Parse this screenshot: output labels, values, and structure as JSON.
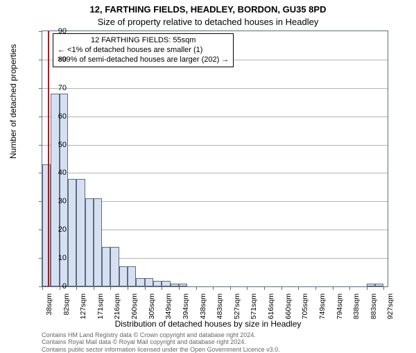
{
  "title_line1": "12, FARTHING FIELDS, HEADLEY, BORDON, GU35 8PD",
  "title_line2": "Size of property relative to detached houses in Headley",
  "ylabel": "Number of detached properties",
  "xlabel": "Distribution of detached houses by size in Headley",
  "caption_line1": "Contains HM Land Registry data © Crown copyright and database right 2024.",
  "caption_line2": "Contains Royal Mail data © Royal Mail copyright and database right 2024.",
  "caption_line3": "Contains public sector information licensed under the Open Government Licence v3.0.",
  "annotation": {
    "line1": "12 FARTHING FIELDS: 55sqm",
    "line2": "← <1% of detached houses are smaller (1)",
    "line3": ">99% of semi-detached houses are larger (202) →"
  },
  "chart": {
    "type": "histogram",
    "x_min": 38,
    "x_max": 938,
    "y_min": 0,
    "y_max": 90,
    "y_ticks": [
      0,
      10,
      20,
      30,
      40,
      50,
      60,
      70,
      80,
      90
    ],
    "x_tick_start": 38,
    "x_tick_step": 44.5,
    "x_tick_count": 21,
    "x_tick_unit": "sqm",
    "x_tick_rounding": [
      38,
      82,
      127,
      171,
      216,
      260,
      305,
      349,
      394,
      438,
      483,
      527,
      571,
      616,
      660,
      705,
      749,
      794,
      838,
      883,
      927
    ],
    "bin_width": 22.25,
    "bar_color": "#d6e0f0",
    "bar_border": "#5b6b80",
    "marker_x": 55,
    "marker_color": "#cc0000",
    "background": "#ffffff",
    "grid_color": "#5b6b80",
    "font_size_axis": 11,
    "font_size_title": 13,
    "bars": [
      {
        "x0": 38.0,
        "x1": 60.25,
        "y": 43
      },
      {
        "x0": 60.25,
        "x1": 82.5,
        "y": 68
      },
      {
        "x0": 82.5,
        "x1": 104.75,
        "y": 68
      },
      {
        "x0": 104.75,
        "x1": 127.0,
        "y": 38
      },
      {
        "x0": 127.0,
        "x1": 149.25,
        "y": 38
      },
      {
        "x0": 149.25,
        "x1": 171.5,
        "y": 31
      },
      {
        "x0": 171.5,
        "x1": 193.75,
        "y": 31
      },
      {
        "x0": 193.75,
        "x1": 216.0,
        "y": 14
      },
      {
        "x0": 216.0,
        "x1": 238.25,
        "y": 14
      },
      {
        "x0": 238.25,
        "x1": 260.5,
        "y": 7
      },
      {
        "x0": 260.5,
        "x1": 282.75,
        "y": 7
      },
      {
        "x0": 282.75,
        "x1": 305.0,
        "y": 3
      },
      {
        "x0": 305.0,
        "x1": 327.25,
        "y": 3
      },
      {
        "x0": 327.25,
        "x1": 349.5,
        "y": 2
      },
      {
        "x0": 349.5,
        "x1": 371.75,
        "y": 2
      },
      {
        "x0": 371.75,
        "x1": 394.0,
        "y": 1
      },
      {
        "x0": 394.0,
        "x1": 416.25,
        "y": 1
      },
      {
        "x0": 883.0,
        "x1": 905.25,
        "y": 1
      },
      {
        "x0": 905.25,
        "x1": 927.5,
        "y": 1
      }
    ]
  }
}
